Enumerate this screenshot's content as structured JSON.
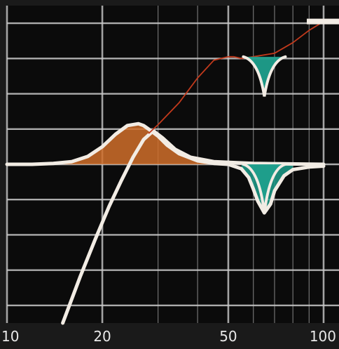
{
  "chart_data": {
    "type": "line",
    "title": "",
    "xlabel": "",
    "ylabel": "",
    "x_scale": "log",
    "xlim": [
      10,
      100
    ],
    "ylim": [
      -18,
      18
    ],
    "grid": true,
    "x_ticks": [
      {
        "value": 10,
        "label": "10"
      },
      {
        "value": 20,
        "label": "20"
      },
      {
        "value": 50,
        "label": "50"
      },
      {
        "value": 100,
        "label": "100"
      }
    ],
    "x_minor_grid": [
      30,
      40,
      60,
      70,
      80,
      90
    ],
    "y_grid": [
      -16,
      -12,
      -8,
      -4,
      0,
      4,
      8,
      12,
      16
    ],
    "colors": {
      "background": "#0b0b0b",
      "grid": "#c9c9c9",
      "curve": "#f2ece4",
      "boost_fill": "#d06f2a",
      "cut_fill": "#1f9f8c",
      "link": "#c23a1c"
    },
    "series": [
      {
        "role": "eq-response",
        "x": [
          10,
          12,
          14,
          16,
          18,
          20,
          22,
          24,
          26,
          27,
          28,
          30,
          32,
          35,
          40,
          45,
          50,
          55,
          58,
          60,
          62,
          65,
          68,
          70,
          75,
          80,
          90,
          100
        ],
        "y": [
          0,
          0,
          0.1,
          0.3,
          0.9,
          2.0,
          3.4,
          4.4,
          4.6,
          4.4,
          4.0,
          3.2,
          2.2,
          1.2,
          0.4,
          0.1,
          0,
          -0.5,
          -1.5,
          -2.8,
          -4.2,
          -5.5,
          -4.5,
          -3.0,
          -1.3,
          -0.6,
          -0.3,
          -0.2
        ]
      },
      {
        "role": "high-pass-response",
        "x": [
          15,
          17,
          19,
          21,
          23,
          25,
          27,
          29,
          31,
          34,
          38,
          45,
          60,
          100
        ],
        "y": [
          -18,
          -12.8,
          -8.5,
          -4.8,
          -1.8,
          0.8,
          2.8,
          3.8,
          3.0,
          1.7,
          0.8,
          0.3,
          0.1,
          0
        ]
      },
      {
        "role": "band-link",
        "x": [
          28,
          30,
          35,
          40,
          45,
          50,
          52,
          55,
          60,
          70,
          80,
          90,
          100
        ],
        "y": [
          3.5,
          4.5,
          7.0,
          9.8,
          11.8,
          12.2,
          12.2,
          12.0,
          12.2,
          12.6,
          13.8,
          15.2,
          16.2
        ]
      }
    ],
    "band_markers": [
      {
        "role": "cut-notch-upper",
        "x": 65,
        "y": 12.2,
        "depth": 4.5
      },
      {
        "role": "cut-notch-lower",
        "x": 65,
        "y": 0,
        "depth": 5.5
      }
    ]
  }
}
